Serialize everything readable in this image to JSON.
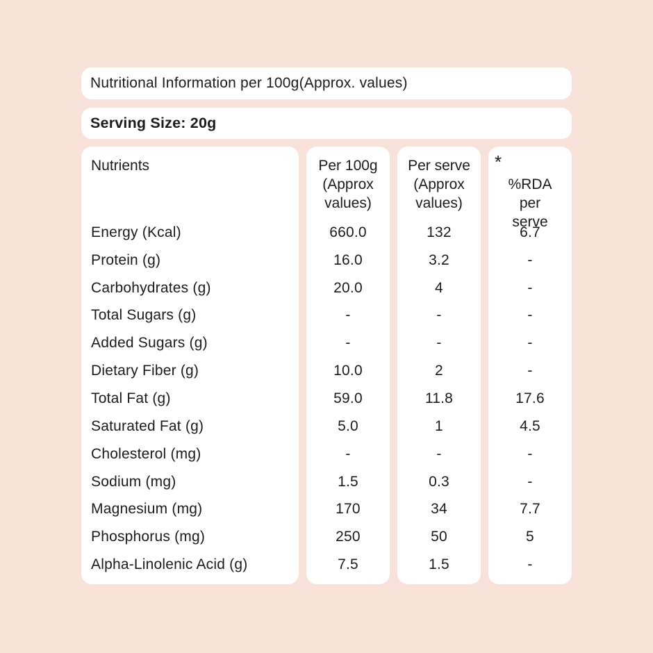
{
  "page": {
    "background_color": "#f8e2d9",
    "card_color": "#ffffff",
    "text_color": "#1b1b1b"
  },
  "title_card": {
    "text": "Nutritional Information per 100g(Approx. values)"
  },
  "serving_card": {
    "text": "Serving Size: 20g"
  },
  "table": {
    "nutrients_header": "Nutrients",
    "columns": [
      {
        "header": "Per 100g\n(Approx\nvalues)"
      },
      {
        "header": "Per serve\n(Approx\nvalues)"
      },
      {
        "header": "%RDA\nper\nserve",
        "asterisk": "*"
      }
    ],
    "rows": [
      {
        "nutrient": "Energy (Kcal)",
        "per_100g": "660.0",
        "per_serve": "132",
        "rda": "6.7"
      },
      {
        "nutrient": "Protein (g)",
        "per_100g": "16.0",
        "per_serve": "3.2",
        "rda": "-"
      },
      {
        "nutrient": "Carbohydrates (g)",
        "per_100g": "20.0",
        "per_serve": "4",
        "rda": "-"
      },
      {
        "nutrient": "Total Sugars (g)",
        "per_100g": "-",
        "per_serve": "-",
        "rda": "-"
      },
      {
        "nutrient": "Added Sugars (g)",
        "per_100g": "-",
        "per_serve": "-",
        "rda": "-"
      },
      {
        "nutrient": "Dietary Fiber (g)",
        "per_100g": "10.0",
        "per_serve": "2",
        "rda": "-"
      },
      {
        "nutrient": "Total Fat (g)",
        "per_100g": "59.0",
        "per_serve": "11.8",
        "rda": "17.6"
      },
      {
        "nutrient": "Saturated Fat (g)",
        "per_100g": "5.0",
        "per_serve": "1",
        "rda": "4.5"
      },
      {
        "nutrient": "Cholesterol (mg)",
        "per_100g": "-",
        "per_serve": "-",
        "rda": "-"
      },
      {
        "nutrient": "Sodium (mg)",
        "per_100g": "1.5",
        "per_serve": "0.3",
        "rda": "-"
      },
      {
        "nutrient": "Magnesium (mg)",
        "per_100g": "170",
        "per_serve": "34",
        "rda": "7.7"
      },
      {
        "nutrient": "Phosphorus (mg)",
        "per_100g": "250",
        "per_serve": "50",
        "rda": "5"
      },
      {
        "nutrient": "Alpha-Linolenic Acid (g)",
        "per_100g": "7.5",
        "per_serve": "1.5",
        "rda": "-"
      }
    ]
  }
}
